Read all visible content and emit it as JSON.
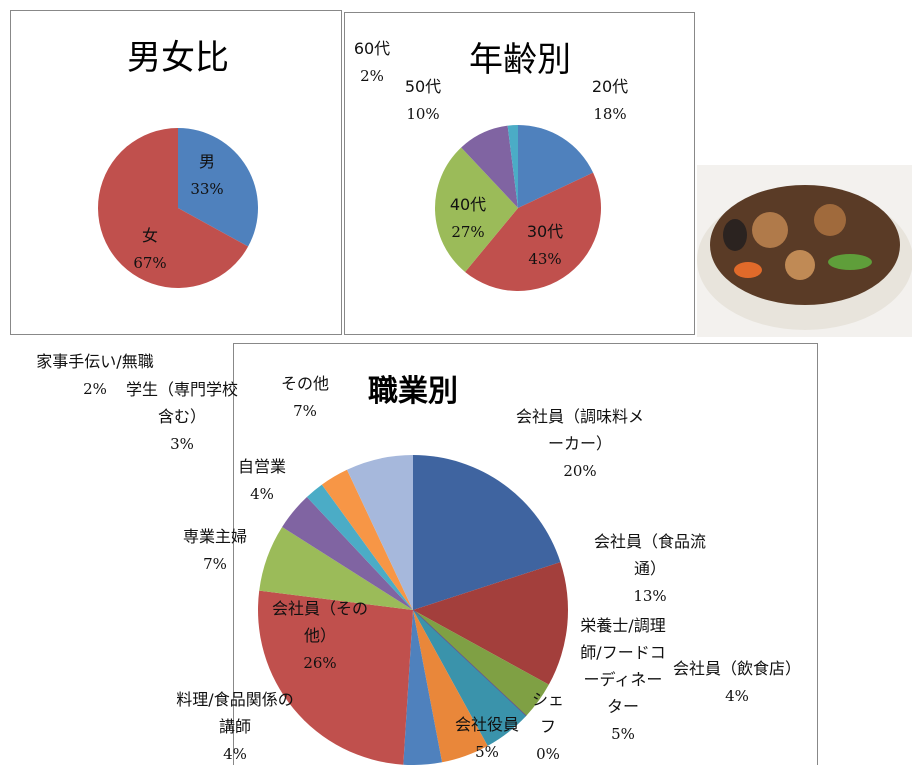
{
  "chart_data": [
    {
      "type": "pie",
      "title": "男女比",
      "categories": [
        "男",
        "女"
      ],
      "values": [
        33,
        67
      ],
      "value_labels": [
        "33%",
        "67%"
      ],
      "colors": [
        "#4f81bd",
        "#c0504d"
      ]
    },
    {
      "type": "pie",
      "title": "年齢別",
      "categories": [
        "20代",
        "30代",
        "40代",
        "50代",
        "60代"
      ],
      "values": [
        18,
        43,
        27,
        10,
        2
      ],
      "value_labels": [
        "18%",
        "43%",
        "27%",
        "10%",
        "2%"
      ],
      "colors": [
        "#4f81bd",
        "#c0504d",
        "#9bbb59",
        "#8064a2",
        "#4bacc6"
      ]
    },
    {
      "type": "pie",
      "title": "職業別",
      "categories": [
        "会社員（調味料メーカー）",
        "会社員（食品流通）",
        "会社員（飲食店）",
        "シェフ",
        "栄養士/調理師/フードコーディネーター",
        "会社役員",
        "料理/食品関係の講師",
        "会社員（その他）",
        "専業主婦",
        "自営業",
        "家事手伝い/無職",
        "学生（専門学校含む）",
        "その他"
      ],
      "values": [
        20,
        13,
        4,
        0,
        5,
        5,
        4,
        26,
        7,
        4,
        2,
        3,
        7
      ],
      "value_labels": [
        "20%",
        "13%",
        "4%",
        "0%",
        "5%",
        "5%",
        "4%",
        "26%",
        "7%",
        "4%",
        "2%",
        "3%",
        "7%"
      ],
      "colors": [
        "#3f64a0",
        "#a33f3c",
        "#7fa044",
        "#6a5291",
        "#3a93ab",
        "#e9873a",
        "#4f81bd",
        "#c0504d",
        "#9bbb59",
        "#8064a2",
        "#4bacc6",
        "#f79646",
        "#a6b8dc"
      ]
    }
  ]
}
